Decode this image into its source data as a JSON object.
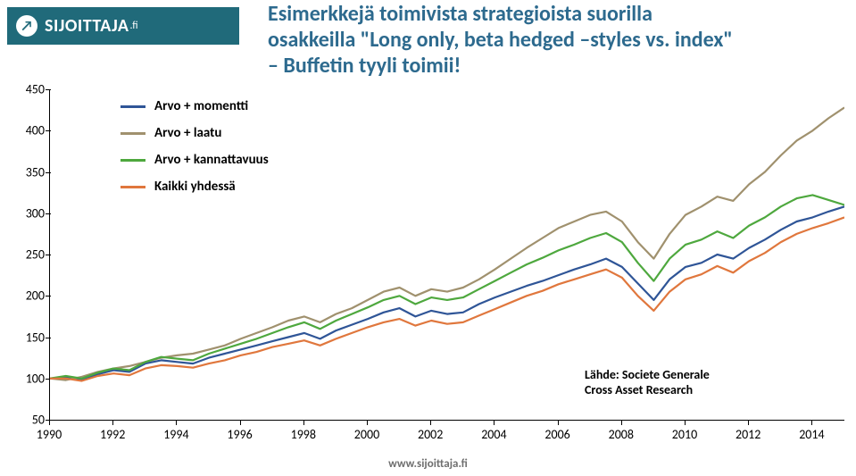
{
  "logo": {
    "brand": "SIJOITTAJA",
    "suffix": ".fi",
    "bar_color": "#206a7a",
    "icon_fg": "#206a7a",
    "icon_bg": "#ffffff"
  },
  "title": {
    "line1": "Esimerkkejä toimivista strategioista suorilla",
    "line2": "osakkeilla \"Long only, beta hedged –styles vs. index\"",
    "line3": "– Buffetin tyyli toimii!",
    "color": "#2d6a8e",
    "fontsize": 24
  },
  "chart": {
    "type": "line",
    "background_color": "#ffffff",
    "axis_color": "#000000",
    "ylim": [
      50,
      450
    ],
    "yticks": [
      50,
      100,
      150,
      200,
      250,
      300,
      350,
      400,
      450
    ],
    "xlim": [
      1990,
      2015
    ],
    "xticks": [
      1990,
      1992,
      1994,
      1996,
      1998,
      2000,
      2002,
      2004,
      2006,
      2008,
      2010,
      2012,
      2014
    ],
    "tick_fontsize": 14,
    "line_width": 2.2,
    "series": [
      {
        "name": "Arvo + momentti",
        "color": "#2f5597",
        "data": [
          [
            1990,
            100
          ],
          [
            1990.5,
            102
          ],
          [
            1991,
            98
          ],
          [
            1991.5,
            105
          ],
          [
            1992,
            110
          ],
          [
            1992.5,
            108
          ],
          [
            1993,
            118
          ],
          [
            1993.5,
            122
          ],
          [
            1994,
            120
          ],
          [
            1994.5,
            118
          ],
          [
            1995,
            125
          ],
          [
            1995.5,
            130
          ],
          [
            1996,
            135
          ],
          [
            1996.5,
            140
          ],
          [
            1997,
            145
          ],
          [
            1997.5,
            150
          ],
          [
            1998,
            155
          ],
          [
            1998.5,
            148
          ],
          [
            1999,
            158
          ],
          [
            1999.5,
            165
          ],
          [
            2000,
            172
          ],
          [
            2000.5,
            180
          ],
          [
            2001,
            185
          ],
          [
            2001.5,
            175
          ],
          [
            2002,
            182
          ],
          [
            2002.5,
            178
          ],
          [
            2003,
            180
          ],
          [
            2003.5,
            190
          ],
          [
            2004,
            198
          ],
          [
            2004.5,
            205
          ],
          [
            2005,
            212
          ],
          [
            2005.5,
            218
          ],
          [
            2006,
            225
          ],
          [
            2006.5,
            232
          ],
          [
            2007,
            238
          ],
          [
            2007.5,
            245
          ],
          [
            2008,
            235
          ],
          [
            2008.5,
            215
          ],
          [
            2009,
            195
          ],
          [
            2009.5,
            220
          ],
          [
            2010,
            235
          ],
          [
            2010.5,
            240
          ],
          [
            2011,
            250
          ],
          [
            2011.5,
            245
          ],
          [
            2012,
            258
          ],
          [
            2012.5,
            268
          ],
          [
            2013,
            280
          ],
          [
            2013.5,
            290
          ],
          [
            2014,
            295
          ],
          [
            2014.5,
            302
          ],
          [
            2015,
            308
          ]
        ]
      },
      {
        "name": "Arvo + laatu",
        "color": "#a0916e",
        "data": [
          [
            1990,
            100
          ],
          [
            1990.5,
            98
          ],
          [
            1991,
            102
          ],
          [
            1991.5,
            108
          ],
          [
            1992,
            112
          ],
          [
            1992.5,
            115
          ],
          [
            1993,
            120
          ],
          [
            1993.5,
            125
          ],
          [
            1994,
            128
          ],
          [
            1994.5,
            130
          ],
          [
            1995,
            135
          ],
          [
            1995.5,
            140
          ],
          [
            1996,
            148
          ],
          [
            1996.5,
            155
          ],
          [
            1997,
            162
          ],
          [
            1997.5,
            170
          ],
          [
            1998,
            175
          ],
          [
            1998.5,
            168
          ],
          [
            1999,
            178
          ],
          [
            1999.5,
            185
          ],
          [
            2000,
            195
          ],
          [
            2000.5,
            205
          ],
          [
            2001,
            210
          ],
          [
            2001.5,
            200
          ],
          [
            2002,
            208
          ],
          [
            2002.5,
            205
          ],
          [
            2003,
            210
          ],
          [
            2003.5,
            220
          ],
          [
            2004,
            232
          ],
          [
            2004.5,
            245
          ],
          [
            2005,
            258
          ],
          [
            2005.5,
            270
          ],
          [
            2006,
            282
          ],
          [
            2006.5,
            290
          ],
          [
            2007,
            298
          ],
          [
            2007.5,
            302
          ],
          [
            2008,
            290
          ],
          [
            2008.5,
            265
          ],
          [
            2009,
            245
          ],
          [
            2009.5,
            275
          ],
          [
            2010,
            298
          ],
          [
            2010.5,
            308
          ],
          [
            2011,
            320
          ],
          [
            2011.5,
            315
          ],
          [
            2012,
            335
          ],
          [
            2012.5,
            350
          ],
          [
            2013,
            370
          ],
          [
            2013.5,
            388
          ],
          [
            2014,
            400
          ],
          [
            2014.5,
            415
          ],
          [
            2015,
            428
          ]
        ]
      },
      {
        "name": "Arvo + kannattavuus",
        "color": "#4ea83e",
        "data": [
          [
            1990,
            100
          ],
          [
            1990.5,
            103
          ],
          [
            1991,
            100
          ],
          [
            1991.5,
            107
          ],
          [
            1992,
            112
          ],
          [
            1992.5,
            110
          ],
          [
            1993,
            120
          ],
          [
            1993.5,
            126
          ],
          [
            1994,
            124
          ],
          [
            1994.5,
            122
          ],
          [
            1995,
            130
          ],
          [
            1995.5,
            136
          ],
          [
            1996,
            142
          ],
          [
            1996.5,
            148
          ],
          [
            1997,
            155
          ],
          [
            1997.5,
            162
          ],
          [
            1998,
            168
          ],
          [
            1998.5,
            160
          ],
          [
            1999,
            170
          ],
          [
            1999.5,
            178
          ],
          [
            2000,
            186
          ],
          [
            2000.5,
            195
          ],
          [
            2001,
            200
          ],
          [
            2001.5,
            190
          ],
          [
            2002,
            198
          ],
          [
            2002.5,
            195
          ],
          [
            2003,
            198
          ],
          [
            2003.5,
            208
          ],
          [
            2004,
            218
          ],
          [
            2004.5,
            228
          ],
          [
            2005,
            238
          ],
          [
            2005.5,
            246
          ],
          [
            2006,
            255
          ],
          [
            2006.5,
            262
          ],
          [
            2007,
            270
          ],
          [
            2007.5,
            276
          ],
          [
            2008,
            265
          ],
          [
            2008.5,
            240
          ],
          [
            2009,
            218
          ],
          [
            2009.5,
            245
          ],
          [
            2010,
            262
          ],
          [
            2010.5,
            268
          ],
          [
            2011,
            278
          ],
          [
            2011.5,
            270
          ],
          [
            2012,
            285
          ],
          [
            2012.5,
            295
          ],
          [
            2013,
            308
          ],
          [
            2013.5,
            318
          ],
          [
            2014,
            322
          ],
          [
            2014.5,
            316
          ],
          [
            2015,
            310
          ]
        ]
      },
      {
        "name": "Kaikki yhdessä",
        "color": "#e0773d",
        "data": [
          [
            1990,
            100
          ],
          [
            1990.5,
            100
          ],
          [
            1991,
            97
          ],
          [
            1991.5,
            103
          ],
          [
            1992,
            106
          ],
          [
            1992.5,
            104
          ],
          [
            1993,
            112
          ],
          [
            1993.5,
            116
          ],
          [
            1994,
            115
          ],
          [
            1994.5,
            113
          ],
          [
            1995,
            118
          ],
          [
            1995.5,
            122
          ],
          [
            1996,
            128
          ],
          [
            1996.5,
            132
          ],
          [
            1997,
            138
          ],
          [
            1997.5,
            142
          ],
          [
            1998,
            146
          ],
          [
            1998.5,
            140
          ],
          [
            1999,
            148
          ],
          [
            1999.5,
            155
          ],
          [
            2000,
            162
          ],
          [
            2000.5,
            168
          ],
          [
            2001,
            172
          ],
          [
            2001.5,
            164
          ],
          [
            2002,
            170
          ],
          [
            2002.5,
            166
          ],
          [
            2003,
            168
          ],
          [
            2003.5,
            176
          ],
          [
            2004,
            184
          ],
          [
            2004.5,
            192
          ],
          [
            2005,
            200
          ],
          [
            2005.5,
            206
          ],
          [
            2006,
            214
          ],
          [
            2006.5,
            220
          ],
          [
            2007,
            226
          ],
          [
            2007.5,
            232
          ],
          [
            2008,
            222
          ],
          [
            2008.5,
            200
          ],
          [
            2009,
            182
          ],
          [
            2009.5,
            205
          ],
          [
            2010,
            220
          ],
          [
            2010.5,
            226
          ],
          [
            2011,
            236
          ],
          [
            2011.5,
            228
          ],
          [
            2012,
            242
          ],
          [
            2012.5,
            252
          ],
          [
            2013,
            265
          ],
          [
            2013.5,
            275
          ],
          [
            2014,
            282
          ],
          [
            2014.5,
            288
          ],
          [
            2015,
            295
          ]
        ]
      }
    ]
  },
  "legend": {
    "fontsize": 15,
    "items": [
      "Arvo + momentti",
      "Arvo + laatu",
      "Arvo + kannattavuus",
      "Kaikki yhdessä"
    ]
  },
  "source": {
    "line1": "Lähde: Societe Generale",
    "line2": "Cross Asset Research"
  },
  "footer": {
    "text": "www.sijoittaja.fi",
    "color": "#6f6f6f"
  }
}
